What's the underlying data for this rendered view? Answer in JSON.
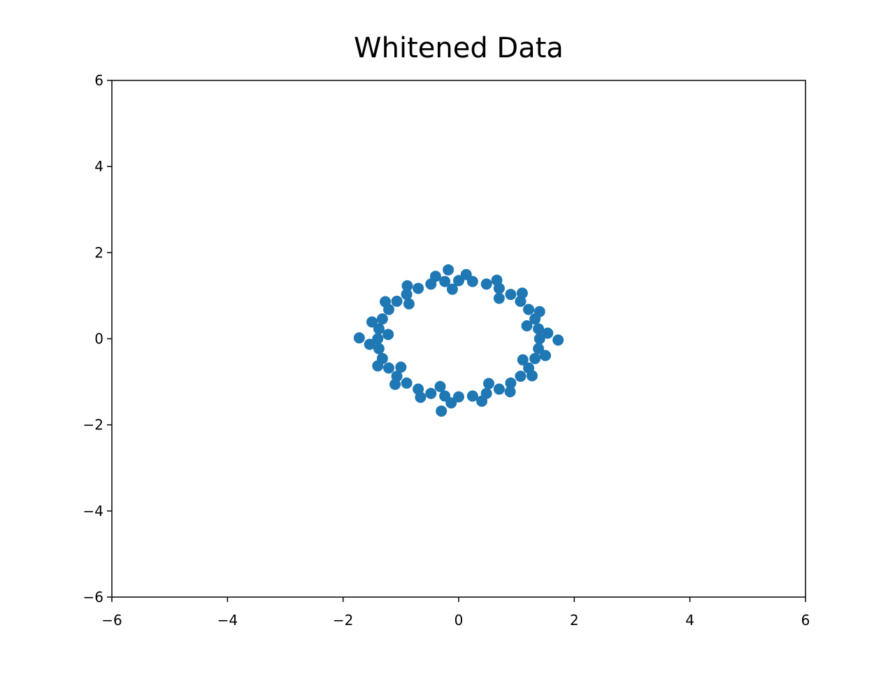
{
  "chart_data": {
    "type": "scatter",
    "title": "Whitened Data",
    "color": "#1f77b4",
    "x": [
      1.4,
      1.38,
      1.32,
      1.21,
      1.07,
      0.9,
      0.7,
      0.48,
      0.24,
      0,
      -0.24,
      -0.48,
      -0.7,
      -0.9,
      -1.07,
      -1.21,
      -1.32,
      -1.38,
      -1.4,
      -1.38,
      -1.32,
      -1.21,
      -1.07,
      -0.9,
      -0.7,
      -0.48,
      -0.24,
      0,
      0.24,
      0.48,
      0.7,
      0.9,
      1.07,
      1.21,
      1.32,
      1.38,
      1.54,
      1.4,
      1.1,
      0.66,
      0.13,
      -0.4,
      -0.89,
      -1.27,
      -1.5,
      -1.54,
      -1.4,
      -1.1,
      -0.66,
      -0.13,
      0.4,
      0.89,
      1.27,
      1.5,
      1.18,
      0.7,
      -0.11,
      -0.86,
      -1.22,
      -1.0,
      -0.32,
      0.52,
      1.11,
      -1.72,
      1.72,
      -0.3,
      -0.18
    ],
    "y": [
      0,
      0.23,
      0.46,
      0.68,
      0.87,
      1.03,
      1.17,
      1.27,
      1.33,
      1.35,
      1.33,
      1.27,
      1.17,
      1.03,
      0.87,
      0.68,
      0.46,
      0.23,
      0,
      -0.23,
      -0.46,
      -0.68,
      -0.87,
      -1.03,
      -1.17,
      -1.27,
      -1.33,
      -1.35,
      -1.33,
      -1.27,
      -1.17,
      -1.03,
      -0.87,
      -0.68,
      -0.46,
      -0.23,
      0.13,
      0.63,
      1.06,
      1.36,
      1.49,
      1.45,
      1.23,
      0.86,
      0.39,
      -0.13,
      -0.63,
      -1.06,
      -1.36,
      -1.49,
      -1.45,
      -1.23,
      -0.86,
      -0.39,
      0.3,
      0.94,
      1.15,
      0.81,
      0.1,
      -0.66,
      -1.11,
      -1.04,
      -0.49,
      0.02,
      -0.03,
      -1.68,
      1.6
    ],
    "xlim": [
      -6,
      6
    ],
    "ylim": [
      -6,
      6
    ],
    "xticks": [
      {
        "value": -6,
        "label": "−6"
      },
      {
        "value": -4,
        "label": "−4"
      },
      {
        "value": -2,
        "label": "−2"
      },
      0,
      2,
      4,
      6
    ],
    "yticks": [
      {
        "value": -6,
        "label": "−6"
      },
      {
        "value": -4,
        "label": "−4"
      },
      {
        "value": -2,
        "label": "−2"
      },
      0,
      2,
      4,
      6
    ]
  }
}
